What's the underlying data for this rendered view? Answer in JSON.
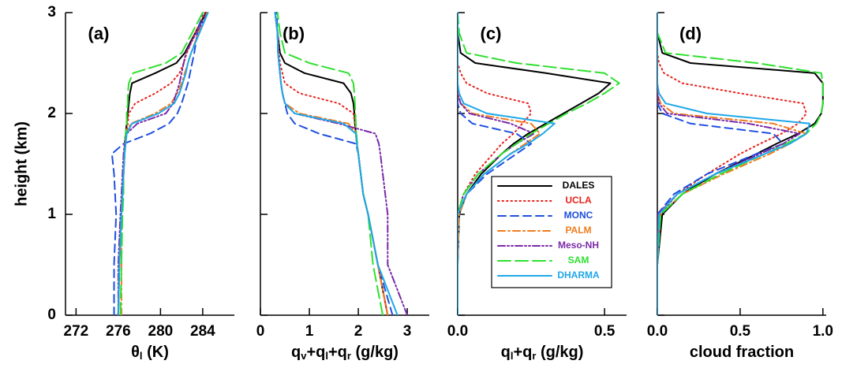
{
  "chart_data": [
    {
      "type": "line",
      "title": "(a)",
      "y_label": "height (km)",
      "x_label": [
        "θ",
        "l",
        " (K)"
      ],
      "xlim": [
        271,
        287
      ],
      "xticks": [
        272,
        276,
        280,
        284
      ],
      "ylim": [
        0,
        3
      ],
      "yticks": [
        0,
        1,
        2,
        3
      ],
      "show_ytick_labels": true,
      "y": [
        0,
        0.5,
        1.0,
        1.2,
        1.4,
        1.6,
        1.7,
        1.8,
        1.9,
        2.0,
        2.1,
        2.2,
        2.3,
        2.4,
        2.5,
        2.6,
        2.8,
        3.0
      ],
      "series": [
        {
          "name": "DALES",
          "color": "#000000",
          "linestyle": "solid",
          "values": [
            276.0,
            276.1,
            276.3,
            276.4,
            276.5,
            276.6,
            276.6,
            276.7,
            276.8,
            276.9,
            277.0,
            277.1,
            277.3,
            279.5,
            281.5,
            282.3,
            283.3,
            284.3
          ]
        },
        {
          "name": "UCLA",
          "color": "#e8221c",
          "linestyle": "dotted",
          "values": [
            276.0,
            276.1,
            276.3,
            276.4,
            276.5,
            276.6,
            276.7,
            276.8,
            276.9,
            277.0,
            277.6,
            279.5,
            281.0,
            281.8,
            282.2,
            282.5,
            283.3,
            284.2
          ]
        },
        {
          "name": "MONC",
          "color": "#1f4fe0",
          "linestyle": "dashed",
          "values": [
            275.6,
            275.6,
            275.8,
            275.7,
            275.6,
            275.4,
            276.5,
            279.0,
            280.8,
            281.6,
            282.0,
            282.3,
            282.6,
            282.8,
            283.0,
            283.2,
            283.5,
            284.0
          ]
        },
        {
          "name": "PALM",
          "color": "#f07c1e",
          "linestyle": "dashdot",
          "values": [
            276.3,
            276.3,
            276.3,
            276.4,
            276.5,
            276.6,
            276.6,
            276.7,
            277.2,
            279.5,
            281.0,
            281.6,
            282.0,
            282.3,
            282.6,
            282.9,
            283.6,
            284.4
          ]
        },
        {
          "name": "Meso-NH",
          "color": "#7a2aa8",
          "linestyle": "dashdotdot",
          "values": [
            276.0,
            276.0,
            276.2,
            276.3,
            276.4,
            276.5,
            276.6,
            276.8,
            277.8,
            280.5,
            281.2,
            281.5,
            281.8,
            282.0,
            282.2,
            282.4,
            283.4,
            284.5
          ]
        },
        {
          "name": "SAM",
          "color": "#2ee02e",
          "linestyle": "longdash",
          "values": [
            276.2,
            276.3,
            276.4,
            276.5,
            276.5,
            276.6,
            276.7,
            276.7,
            276.8,
            276.8,
            276.9,
            276.9,
            277.0,
            277.4,
            280.5,
            282.0,
            283.0,
            284.0
          ]
        },
        {
          "name": "DHARMA",
          "color": "#1ea8e8",
          "linestyle": "solid",
          "values": [
            276.0,
            276.1,
            276.3,
            276.4,
            276.5,
            276.6,
            276.7,
            276.8,
            277.3,
            279.8,
            281.3,
            281.8,
            282.1,
            282.4,
            282.6,
            282.9,
            283.7,
            284.5
          ]
        }
      ]
    },
    {
      "type": "line",
      "title": "(b)",
      "x_label": [
        "q",
        "v",
        "+q",
        "l",
        "+q",
        "r",
        " (g/kg)"
      ],
      "xlim": [
        0,
        3.45
      ],
      "xticks": [
        0,
        1,
        2,
        3
      ],
      "ylim": [
        0,
        3
      ],
      "yticks": [
        0,
        1,
        2,
        3
      ],
      "show_ytick_labels": false,
      "y": [
        0,
        0.5,
        1.0,
        1.2,
        1.4,
        1.6,
        1.7,
        1.8,
        1.9,
        2.0,
        2.1,
        2.2,
        2.3,
        2.4,
        2.5,
        2.6,
        2.8,
        3.0
      ],
      "series": [
        {
          "name": "DALES",
          "color": "#000000",
          "linestyle": "solid",
          "values": [
            2.6,
            2.4,
            2.2,
            2.1,
            2.05,
            2.0,
            1.97,
            1.95,
            1.93,
            1.92,
            1.9,
            1.85,
            1.7,
            0.9,
            0.5,
            0.4,
            0.35,
            0.3
          ]
        },
        {
          "name": "UCLA",
          "color": "#e8221c",
          "linestyle": "dotted",
          "values": [
            2.6,
            2.4,
            2.2,
            2.1,
            2.05,
            2.0,
            1.97,
            1.95,
            1.93,
            1.9,
            1.6,
            0.8,
            0.5,
            0.45,
            0.4,
            0.38,
            0.35,
            0.3
          ]
        },
        {
          "name": "MONC",
          "color": "#1f4fe0",
          "linestyle": "dashed",
          "values": [
            2.7,
            2.4,
            2.2,
            2.1,
            2.05,
            2.0,
            1.95,
            1.2,
            0.7,
            0.55,
            0.5,
            0.45,
            0.42,
            0.4,
            0.38,
            0.36,
            0.35,
            0.33
          ]
        },
        {
          "name": "PALM",
          "color": "#f07c1e",
          "linestyle": "dashdot",
          "values": [
            2.6,
            2.4,
            2.2,
            2.1,
            2.05,
            2.0,
            1.97,
            1.95,
            1.8,
            0.8,
            0.5,
            0.45,
            0.42,
            0.4,
            0.38,
            0.36,
            0.35,
            0.3
          ]
        },
        {
          "name": "Meso-NH",
          "color": "#7a2aa8",
          "linestyle": "dashdotdot",
          "values": [
            3.0,
            2.6,
            2.6,
            2.55,
            2.5,
            2.45,
            2.42,
            2.35,
            1.6,
            0.7,
            0.5,
            0.45,
            0.42,
            0.4,
            0.38,
            0.36,
            0.35,
            0.3
          ]
        },
        {
          "name": "SAM",
          "color": "#2ee02e",
          "linestyle": "longdash",
          "values": [
            2.5,
            2.3,
            2.2,
            2.1,
            2.05,
            2.0,
            1.98,
            1.96,
            1.95,
            1.94,
            1.93,
            1.92,
            1.9,
            1.8,
            1.0,
            0.5,
            0.4,
            0.35
          ]
        },
        {
          "name": "DHARMA",
          "color": "#1ea8e8",
          "linestyle": "solid",
          "values": [
            2.8,
            2.4,
            2.2,
            2.1,
            2.05,
            2.0,
            1.97,
            1.95,
            1.7,
            0.7,
            0.5,
            0.45,
            0.42,
            0.4,
            0.38,
            0.36,
            0.35,
            0.3
          ]
        }
      ]
    },
    {
      "type": "line",
      "title": "(c)",
      "x_label": [
        "q",
        "l",
        "+q",
        "r",
        " (g/kg)"
      ],
      "legend": "lower right",
      "xlim": [
        0,
        0.575
      ],
      "xticks": [
        {
          "value": 0,
          "label": "0.0"
        },
        0.5
      ],
      "ylim": [
        0,
        3
      ],
      "yticks": [
        0,
        1,
        2,
        3
      ],
      "show_ytick_labels": false,
      "y": [
        0,
        0.5,
        1.0,
        1.2,
        1.4,
        1.6,
        1.7,
        1.8,
        1.9,
        2.0,
        2.1,
        2.2,
        2.3,
        2.4,
        2.5,
        2.6,
        2.8,
        3.0
      ],
      "series": [
        {
          "name": "DALES",
          "color": "#000000",
          "linestyle": "solid",
          "values": [
            0,
            0,
            0.005,
            0.03,
            0.08,
            0.15,
            0.19,
            0.24,
            0.3,
            0.36,
            0.42,
            0.48,
            0.52,
            0.3,
            0.06,
            0.01,
            0,
            0
          ]
        },
        {
          "name": "UCLA",
          "color": "#e8221c",
          "linestyle": "dotted",
          "values": [
            0,
            0,
            0,
            0.02,
            0.06,
            0.12,
            0.15,
            0.19,
            0.22,
            0.25,
            0.24,
            0.1,
            0.03,
            0.01,
            0,
            0,
            0,
            0
          ]
        },
        {
          "name": "MONC",
          "color": "#1f4fe0",
          "linestyle": "dashed",
          "values": [
            0,
            0,
            0,
            0.03,
            0.1,
            0.2,
            0.25,
            0.2,
            0.05,
            0.01,
            0,
            0,
            0,
            0,
            0,
            0,
            0,
            0
          ]
        },
        {
          "name": "PALM",
          "color": "#f07c1e",
          "linestyle": "dashdot",
          "values": [
            0,
            0,
            0.005,
            0.03,
            0.09,
            0.18,
            0.23,
            0.28,
            0.25,
            0.05,
            0.01,
            0,
            0,
            0,
            0,
            0,
            0,
            0
          ]
        },
        {
          "name": "Meso-NH",
          "color": "#7a2aa8",
          "linestyle": "dashdotdot",
          "values": [
            0,
            0,
            0,
            0.02,
            0.07,
            0.15,
            0.2,
            0.26,
            0.18,
            0.04,
            0.01,
            0,
            0,
            0,
            0,
            0,
            0,
            0
          ]
        },
        {
          "name": "SAM",
          "color": "#2ee02e",
          "linestyle": "longdash",
          "values": [
            0,
            0,
            0,
            0.02,
            0.07,
            0.15,
            0.2,
            0.25,
            0.31,
            0.37,
            0.44,
            0.5,
            0.55,
            0.5,
            0.2,
            0.03,
            0.005,
            0
          ]
        },
        {
          "name": "DHARMA",
          "color": "#1ea8e8",
          "linestyle": "solid",
          "values": [
            0,
            0,
            0,
            0.03,
            0.09,
            0.18,
            0.24,
            0.29,
            0.33,
            0.1,
            0.02,
            0.005,
            0,
            0,
            0,
            0,
            0,
            0
          ]
        }
      ]
    },
    {
      "type": "line",
      "title": "(d)",
      "x_label": [
        "cloud fraction"
      ],
      "xlim": [
        0,
        1.02
      ],
      "xticks": [
        {
          "value": 0,
          "label": "0.0"
        },
        0.5,
        {
          "value": 1,
          "label": "1.0"
        }
      ],
      "ylim": [
        0,
        3
      ],
      "yticks": [
        0,
        1,
        2,
        3
      ],
      "show_ytick_labels": false,
      "y": [
        0,
        0.5,
        1.0,
        1.2,
        1.4,
        1.6,
        1.7,
        1.8,
        1.9,
        2.0,
        2.1,
        2.2,
        2.3,
        2.4,
        2.5,
        2.6,
        2.8,
        3.0
      ],
      "series": [
        {
          "name": "DALES",
          "color": "#000000",
          "linestyle": "solid",
          "values": [
            0,
            0,
            0.03,
            0.15,
            0.35,
            0.6,
            0.72,
            0.85,
            0.95,
            0.99,
            1.0,
            1.0,
            1.0,
            0.95,
            0.2,
            0.03,
            0,
            0
          ]
        },
        {
          "name": "UCLA",
          "color": "#e8221c",
          "linestyle": "dotted",
          "values": [
            0,
            0,
            0.02,
            0.12,
            0.3,
            0.5,
            0.62,
            0.75,
            0.85,
            0.9,
            0.88,
            0.5,
            0.15,
            0.04,
            0.01,
            0,
            0,
            0
          ]
        },
        {
          "name": "MONC",
          "color": "#1f4fe0",
          "linestyle": "dashed",
          "values": [
            0,
            0,
            0,
            0.1,
            0.3,
            0.6,
            0.76,
            0.7,
            0.2,
            0.03,
            0,
            0,
            0,
            0,
            0,
            0,
            0,
            0
          ]
        },
        {
          "name": "PALM",
          "color": "#f07c1e",
          "linestyle": "dashdot",
          "values": [
            0,
            0,
            0.02,
            0.15,
            0.4,
            0.68,
            0.8,
            0.9,
            0.7,
            0.1,
            0.02,
            0,
            0,
            0,
            0,
            0,
            0,
            0
          ]
        },
        {
          "name": "Meso-NH",
          "color": "#7a2aa8",
          "linestyle": "dashdotdot",
          "values": [
            0,
            0,
            0,
            0.12,
            0.35,
            0.62,
            0.76,
            0.86,
            0.55,
            0.06,
            0.01,
            0,
            0,
            0,
            0,
            0,
            0,
            0
          ]
        },
        {
          "name": "SAM",
          "color": "#2ee02e",
          "linestyle": "longdash",
          "values": [
            0,
            0,
            0.02,
            0.15,
            0.38,
            0.65,
            0.78,
            0.9,
            0.96,
            0.99,
            1.0,
            1.0,
            1.0,
            0.99,
            0.6,
            0.05,
            0,
            0
          ]
        },
        {
          "name": "DHARMA",
          "color": "#1ea8e8",
          "linestyle": "solid",
          "values": [
            0,
            0,
            0.01,
            0.12,
            0.35,
            0.65,
            0.8,
            0.9,
            0.92,
            0.3,
            0.05,
            0.01,
            0,
            0,
            0,
            0,
            0,
            0
          ]
        }
      ]
    }
  ]
}
